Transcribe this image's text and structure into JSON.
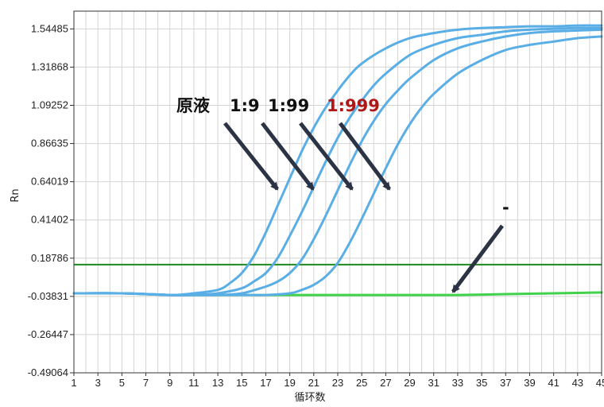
{
  "chart_data": {
    "type": "line",
    "xlabel": "循环数",
    "ylabel": "Rn",
    "xlim": [
      1,
      45
    ],
    "ylim": [
      -0.49064,
      1.65
    ],
    "grid": true,
    "x_ticks": [
      1,
      3,
      5,
      7,
      9,
      11,
      13,
      15,
      17,
      19,
      21,
      23,
      25,
      27,
      29,
      31,
      33,
      35,
      37,
      39,
      41,
      43,
      45
    ],
    "y_ticks": [
      -0.49064,
      -0.26447,
      -0.03831,
      0.18786,
      0.41402,
      0.64019,
      0.86635,
      1.09252,
      1.31868,
      1.54485
    ],
    "y_tick_labels": [
      "-0.49064",
      "-0.26447",
      "-0.03831",
      "0.18786",
      "0.41402",
      "0.64019",
      "0.86635",
      "1.09252",
      "1.31868",
      "1.54485"
    ],
    "x_tick_labels": [
      "1",
      "3",
      "5",
      "7",
      "9",
      "11",
      "13",
      "15",
      "17",
      "19",
      "21",
      "23",
      "25",
      "27",
      "29",
      "31",
      "33",
      "35",
      "37",
      "39",
      "41",
      "43",
      "45"
    ],
    "threshold": {
      "y": 0.15,
      "color": "#1e8a1e"
    },
    "series": [
      {
        "color": "#5aaee6",
        "x": [
          1,
          5,
          9,
          11,
          13,
          14,
          15,
          16,
          17,
          18,
          19,
          20,
          21,
          22,
          23,
          24,
          25,
          27,
          29,
          31,
          33,
          35,
          37,
          39,
          41,
          43,
          45
        ],
        "y": [
          -0.02,
          -0.02,
          -0.03,
          -0.02,
          0.0,
          0.04,
          0.1,
          0.2,
          0.34,
          0.5,
          0.66,
          0.82,
          0.96,
          1.08,
          1.18,
          1.27,
          1.34,
          1.43,
          1.49,
          1.52,
          1.54,
          1.55,
          1.555,
          1.56,
          1.56,
          1.565,
          1.565
        ]
      },
      {
        "color": "#5aaee6",
        "x": [
          1,
          5,
          9,
          11,
          13,
          15,
          16,
          17,
          18,
          19,
          20,
          21,
          22,
          23,
          24,
          25,
          26,
          27,
          29,
          31,
          33,
          35,
          37,
          39,
          41,
          43,
          45
        ],
        "y": [
          -0.02,
          -0.02,
          -0.03,
          -0.03,
          -0.02,
          0.01,
          0.05,
          0.1,
          0.19,
          0.32,
          0.46,
          0.61,
          0.76,
          0.9,
          1.02,
          1.12,
          1.21,
          1.28,
          1.39,
          1.45,
          1.49,
          1.51,
          1.53,
          1.54,
          1.545,
          1.55,
          1.55
        ]
      },
      {
        "color": "#5aaee6",
        "x": [
          1,
          5,
          9,
          11,
          13,
          15,
          17,
          18,
          19,
          20,
          21,
          22,
          23,
          24,
          25,
          26,
          27,
          28,
          29,
          31,
          33,
          35,
          37,
          39,
          41,
          43,
          45
        ],
        "y": [
          -0.02,
          -0.02,
          -0.03,
          -0.03,
          -0.03,
          -0.02,
          0.02,
          0.05,
          0.1,
          0.18,
          0.3,
          0.44,
          0.59,
          0.74,
          0.88,
          1.0,
          1.1,
          1.18,
          1.25,
          1.36,
          1.43,
          1.47,
          1.5,
          1.52,
          1.53,
          1.535,
          1.54
        ]
      },
      {
        "color": "#5aaee6",
        "x": [
          1,
          5,
          9,
          11,
          13,
          15,
          17,
          19,
          20,
          21,
          22,
          23,
          24,
          25,
          26,
          27,
          28,
          29,
          30,
          31,
          33,
          35,
          37,
          39,
          41,
          43,
          45
        ],
        "y": [
          -0.02,
          -0.02,
          -0.03,
          -0.03,
          -0.03,
          -0.03,
          -0.03,
          -0.02,
          0.0,
          0.03,
          0.08,
          0.16,
          0.28,
          0.42,
          0.57,
          0.72,
          0.86,
          0.98,
          1.08,
          1.16,
          1.28,
          1.36,
          1.42,
          1.45,
          1.47,
          1.49,
          1.5
        ]
      },
      {
        "color": "#3fd24a",
        "x": [
          1,
          5,
          9,
          13,
          17,
          21,
          25,
          29,
          33,
          37,
          41,
          45
        ],
        "y": [
          -0.02,
          -0.02,
          -0.03,
          -0.03,
          -0.03,
          -0.03,
          -0.03,
          -0.03,
          -0.03,
          -0.025,
          -0.02,
          -0.015
        ]
      }
    ],
    "annotations": [
      {
        "text": "原液",
        "color": "#111111"
      },
      {
        "text": "1:9",
        "color": "#111111"
      },
      {
        "text": "1:99",
        "color": "#111111"
      },
      {
        "text": "1:999",
        "color": "#b01818"
      },
      {
        "text": "-",
        "color": "#111111"
      }
    ]
  }
}
